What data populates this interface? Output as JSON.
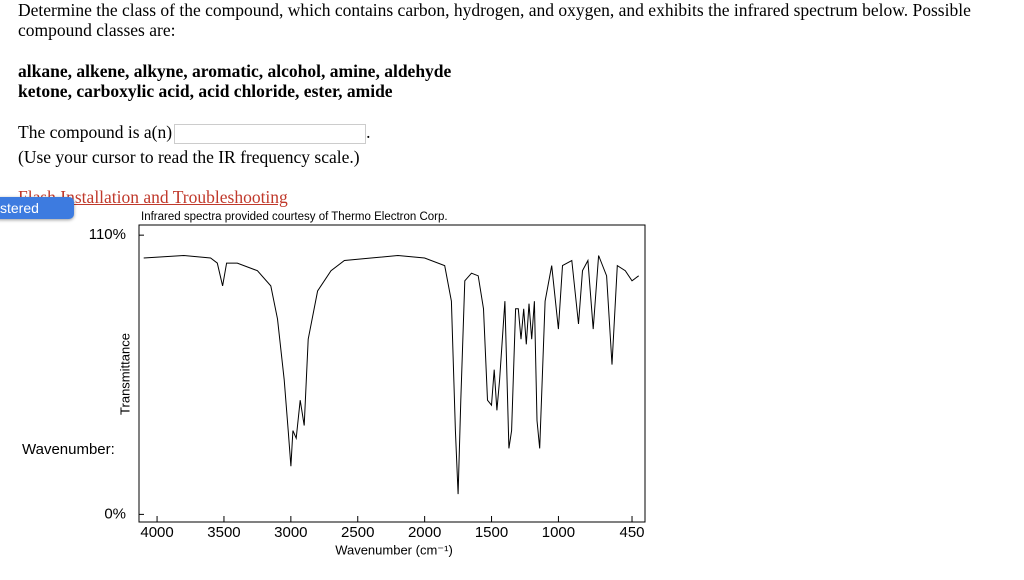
{
  "question": "Determine the class of the compound, which contains carbon, hydrogen, and oxygen, and exhibits the infrared spectrum below. Possible compound classes are:",
  "classes": [
    "alkane, alkene, alkyne, aromatic, alcohol, amine, aldehyde",
    "ketone, carboxylic acid, acid chloride, ester, amide"
  ],
  "prompt": "The compound is a(n)",
  "prompt_end": ".",
  "note": "(Use your cursor to read the IR frequency scale.)",
  "link": "Flash Installation and Troubleshooting",
  "badge": "stered",
  "side_label": "Wavenumber:",
  "chart_data": {
    "type": "line",
    "title": "Infrared spectra provided courtesy of Thermo Electron Corp.",
    "x_label": "Wavenumber (cm⁻¹)",
    "y_label": "Transmittance",
    "color": "#000000",
    "x": [
      4100,
      3800,
      3600,
      3550,
      3510,
      3480,
      3400,
      3250,
      3150,
      3100,
      3050,
      3020,
      3000,
      2985,
      2960,
      2930,
      2900,
      2870,
      2800,
      2700,
      2600,
      2400,
      2200,
      2000,
      1850,
      1800,
      1770,
      1750,
      1730,
      1700,
      1650,
      1600,
      1560,
      1530,
      1500,
      1480,
      1460,
      1440,
      1400,
      1370,
      1350,
      1320,
      1300,
      1280,
      1260,
      1240,
      1220,
      1200,
      1180,
      1160,
      1140,
      1100,
      1050,
      1000,
      970,
      900,
      850,
      820,
      780,
      740,
      700,
      640,
      600,
      560,
      500,
      450,
      400
    ],
    "values": [
      101,
      102,
      101,
      99,
      90,
      99,
      99,
      96,
      90,
      77,
      53,
      33,
      19,
      33,
      30,
      45,
      35,
      69,
      88,
      96,
      100,
      101,
      102,
      101,
      98,
      84,
      33,
      8,
      45,
      92,
      95,
      94,
      81,
      45,
      43,
      57,
      41,
      53,
      84,
      26,
      33,
      81,
      81,
      69,
      81,
      67,
      83,
      69,
      84,
      37,
      26,
      84,
      98,
      73,
      98,
      100,
      75,
      96,
      100,
      73,
      102,
      94,
      59,
      98,
      96,
      92,
      94
    ],
    "xlim": [
      4135,
      353
    ],
    "ylim": [
      -3,
      114
    ],
    "xticks": [
      4000,
      3500,
      3000,
      2500,
      2000,
      1500,
      1000,
      450
    ],
    "yticks": [
      {
        "value": 110,
        "label": "110%"
      },
      {
        "value": 0,
        "label": "0%"
      }
    ]
  }
}
